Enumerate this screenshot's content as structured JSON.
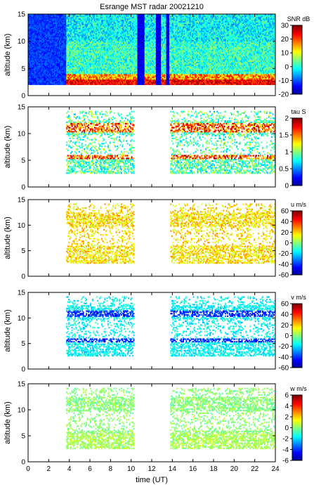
{
  "figure": {
    "title": "Esrange MST radar 20021210",
    "xlabel": "time (UT)",
    "ylabel": "altitude (km)"
  },
  "colors": {
    "frame": "#000000",
    "background": "#ffffff",
    "colormap": [
      "#00008f",
      "#0000ff",
      "#0080ff",
      "#00ffff",
      "#80ff80",
      "#ffff00",
      "#ff8000",
      "#ff0000",
      "#800000"
    ]
  },
  "chart_data": [
    {
      "type": "heatmap",
      "title": "Esrange MST radar 20021210",
      "xlabel": "",
      "ylabel": "altitude (km)",
      "xlim": [
        0,
        24
      ],
      "ylim": [
        0,
        15
      ],
      "xticks": [
        0,
        2,
        4,
        6,
        8,
        10,
        12,
        14,
        16,
        18,
        20,
        22,
        24
      ],
      "yticks": [
        0,
        5,
        10,
        15
      ],
      "colorbar": {
        "label": "SNR dB",
        "range": [
          -20,
          30
        ],
        "ticks": [
          30,
          20,
          10,
          0,
          -10,
          -20
        ]
      },
      "data_coverage": {
        "altitude_km": [
          2,
          15
        ],
        "time_ut": [
          0,
          24
        ]
      },
      "low_level_high_values": {
        "altitude_km": [
          2,
          4
        ],
        "time_ut": [
          3.7,
          24
        ],
        "value_db": 20
      },
      "gaps_low_signal": [
        [
          10.5,
          11.2
        ],
        [
          12.3,
          12.8
        ],
        [
          13.3,
          13.6
        ]
      ]
    },
    {
      "type": "heatmap",
      "title": "",
      "xlabel": "",
      "ylabel": "altitude (km)",
      "xlim": [
        0,
        24
      ],
      "ylim": [
        0,
        15
      ],
      "xticks": [
        0,
        2,
        4,
        6,
        8,
        10,
        12,
        14,
        16,
        18,
        20,
        22,
        24
      ],
      "yticks": [
        0,
        5,
        10,
        15
      ],
      "colorbar": {
        "label": "tau S",
        "range": [
          0,
          2
        ],
        "ticks": [
          2,
          1.5,
          1,
          0.5,
          0
        ]
      },
      "data_periods_ut": [
        [
          3.7,
          10.2
        ],
        [
          13.7,
          24
        ]
      ],
      "layers_km": [
        [
          10.0,
          12.0
        ],
        [
          5.5,
          6.0
        ],
        [
          3.5,
          5.5
        ],
        [
          11.5,
          12.5
        ]
      ]
    },
    {
      "type": "heatmap",
      "title": "",
      "xlabel": "",
      "ylabel": "altitude (km)",
      "xlim": [
        0,
        24
      ],
      "ylim": [
        0,
        15
      ],
      "xticks": [
        0,
        2,
        4,
        6,
        8,
        10,
        12,
        14,
        16,
        18,
        20,
        22,
        24
      ],
      "yticks": [
        0,
        5,
        10,
        15
      ],
      "colorbar": {
        "label": "u m/s",
        "range": [
          -60,
          60
        ],
        "ticks": [
          60,
          40,
          20,
          0,
          -20,
          -40,
          -60
        ]
      },
      "data_periods_ut": [
        [
          3.7,
          10.2
        ],
        [
          13.7,
          24
        ]
      ]
    },
    {
      "type": "heatmap",
      "title": "",
      "xlabel": "",
      "ylabel": "altitude (km)",
      "xlim": [
        0,
        24
      ],
      "ylim": [
        0,
        15
      ],
      "xticks": [
        0,
        2,
        4,
        6,
        8,
        10,
        12,
        14,
        16,
        18,
        20,
        22,
        24
      ],
      "yticks": [
        0,
        5,
        10,
        15
      ],
      "colorbar": {
        "label": "v m/s",
        "range": [
          -60,
          60
        ],
        "ticks": [
          60,
          40,
          20,
          0,
          -20,
          -40,
          -60
        ]
      },
      "data_periods_ut": [
        [
          3.7,
          10.2
        ],
        [
          13.7,
          24
        ]
      ]
    },
    {
      "type": "heatmap",
      "title": "",
      "xlabel": "time (UT)",
      "ylabel": "altitude (km)",
      "xlim": [
        0,
        24
      ],
      "ylim": [
        0,
        15
      ],
      "xticks": [
        0,
        2,
        4,
        6,
        8,
        10,
        12,
        14,
        16,
        18,
        20,
        22,
        24
      ],
      "yticks": [
        0,
        5,
        10,
        15
      ],
      "colorbar": {
        "label": "w m/s",
        "range": [
          -6,
          6
        ],
        "ticks": [
          6,
          4,
          2,
          0,
          -2,
          -4,
          -6
        ]
      },
      "data_periods_ut": [
        [
          3.7,
          10.2
        ],
        [
          13.7,
          24
        ]
      ],
      "dense_region": {
        "altitude_km": [
          2,
          6
        ],
        "time_ut": [
          3.7,
          24
        ]
      }
    }
  ]
}
